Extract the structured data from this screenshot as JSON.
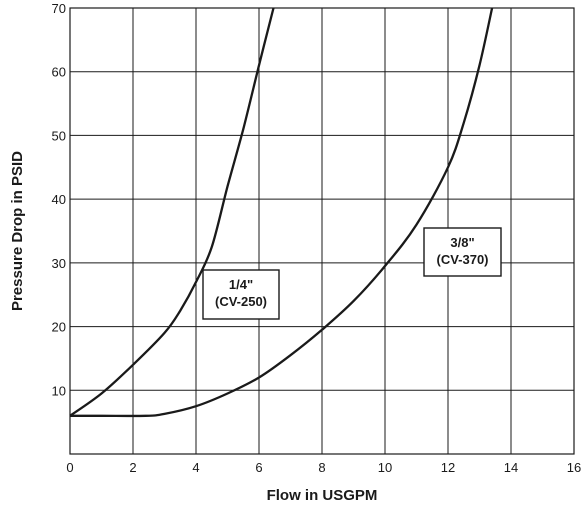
{
  "chart_data": {
    "type": "line",
    "xlabel": "Flow in USGPM",
    "ylabel": "Pressure Drop in PSID",
    "xlim": [
      0,
      16
    ],
    "ylim": [
      0,
      70
    ],
    "x_ticks": [
      0,
      2,
      4,
      6,
      8,
      10,
      12,
      14,
      16
    ],
    "y_ticks": [
      10,
      20,
      30,
      40,
      50,
      60,
      70
    ],
    "grid": true,
    "series": [
      {
        "name": "1/4\" (CV-250)",
        "x": [
          0.0,
          1.0,
          2.0,
          3.0,
          3.5,
          4.0,
          4.5,
          5.0,
          5.5,
          6.0,
          6.46
        ],
        "y": [
          6.0,
          9.5,
          14.0,
          19.0,
          22.5,
          27.0,
          32.5,
          42.0,
          51.0,
          61.0,
          70.0
        ]
      },
      {
        "name": "3/8\" (CV-370)",
        "x": [
          0.0,
          1.0,
          2.4,
          3.0,
          4.0,
          5.0,
          6.0,
          7.0,
          8.0,
          9.0,
          10.0,
          11.0,
          12.0,
          12.5,
          13.0,
          13.4
        ],
        "y": [
          6.0,
          6.0,
          6.0,
          6.3,
          7.5,
          9.5,
          12.0,
          15.5,
          19.5,
          24.0,
          29.5,
          36.0,
          45.0,
          52.0,
          61.0,
          70.0
        ]
      }
    ],
    "annotations": [
      {
        "series": 0,
        "lines": [
          "1/4\"",
          "(CV-250)"
        ]
      },
      {
        "series": 1,
        "lines": [
          "3/8\"",
          "(CV-370)"
        ]
      }
    ]
  }
}
